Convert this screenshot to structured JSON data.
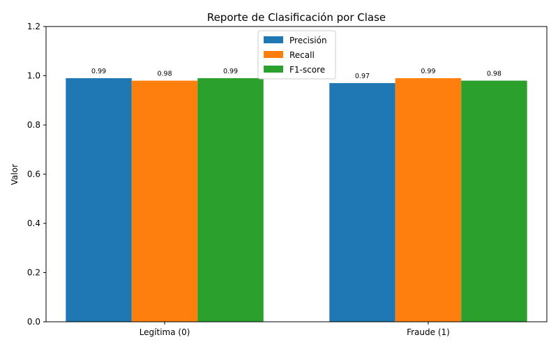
{
  "chart_data": {
    "type": "bar",
    "title": "Reporte de Clasificación por Clase",
    "xlabel": "",
    "ylabel": "Valor",
    "categories": [
      "Legítima (0)",
      "Fraude (1)"
    ],
    "series": [
      {
        "name": "Precisión",
        "values": [
          0.99,
          0.97
        ],
        "labels": [
          "0.99",
          "0.97"
        ],
        "color": "#1f77b4"
      },
      {
        "name": "Recall",
        "values": [
          0.98,
          0.99
        ],
        "labels": [
          "0.98",
          "0.99"
        ],
        "color": "#ff7f0e"
      },
      {
        "name": "F1-score",
        "values": [
          0.99,
          0.98
        ],
        "labels": [
          "0.99",
          "0.98"
        ],
        "color": "#2ca02c"
      }
    ],
    "ylim": [
      0,
      1.2
    ],
    "yticks": [
      "0.0",
      "0.2",
      "0.4",
      "0.6",
      "0.8",
      "1.0",
      "1.2"
    ],
    "grid": false,
    "legend_position": "top-center"
  }
}
